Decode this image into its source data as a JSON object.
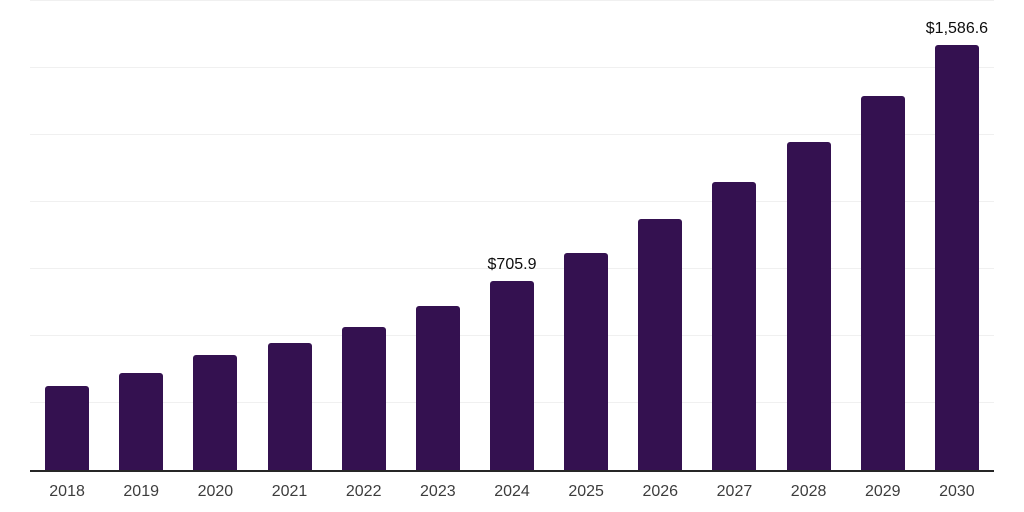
{
  "chart_data": {
    "type": "bar",
    "title": "",
    "xlabel": "",
    "ylabel": "",
    "categories": [
      "2018",
      "2019",
      "2020",
      "2021",
      "2022",
      "2023",
      "2024",
      "2025",
      "2026",
      "2027",
      "2028",
      "2029",
      "2030"
    ],
    "values": [
      313,
      362,
      429,
      474,
      534,
      612,
      705.9,
      810,
      937,
      1075,
      1224,
      1395,
      1586.6
    ],
    "data_labels": [
      {
        "category": "2024",
        "text": "$705.9"
      },
      {
        "category": "2030",
        "text": "$1,586.6"
      }
    ],
    "ylim": [
      0,
      1750
    ],
    "grid_step": 250,
    "grid": "horizontal-only",
    "legend": "none",
    "y_axis_ticks_visible": false,
    "colors": {
      "bar": "#341150",
      "gridline": "#f0f0f0",
      "axis_line": "#262626",
      "tick_label": "#3d3d3d",
      "data_label": "#0d0d0d",
      "background": "#ffffff"
    }
  }
}
